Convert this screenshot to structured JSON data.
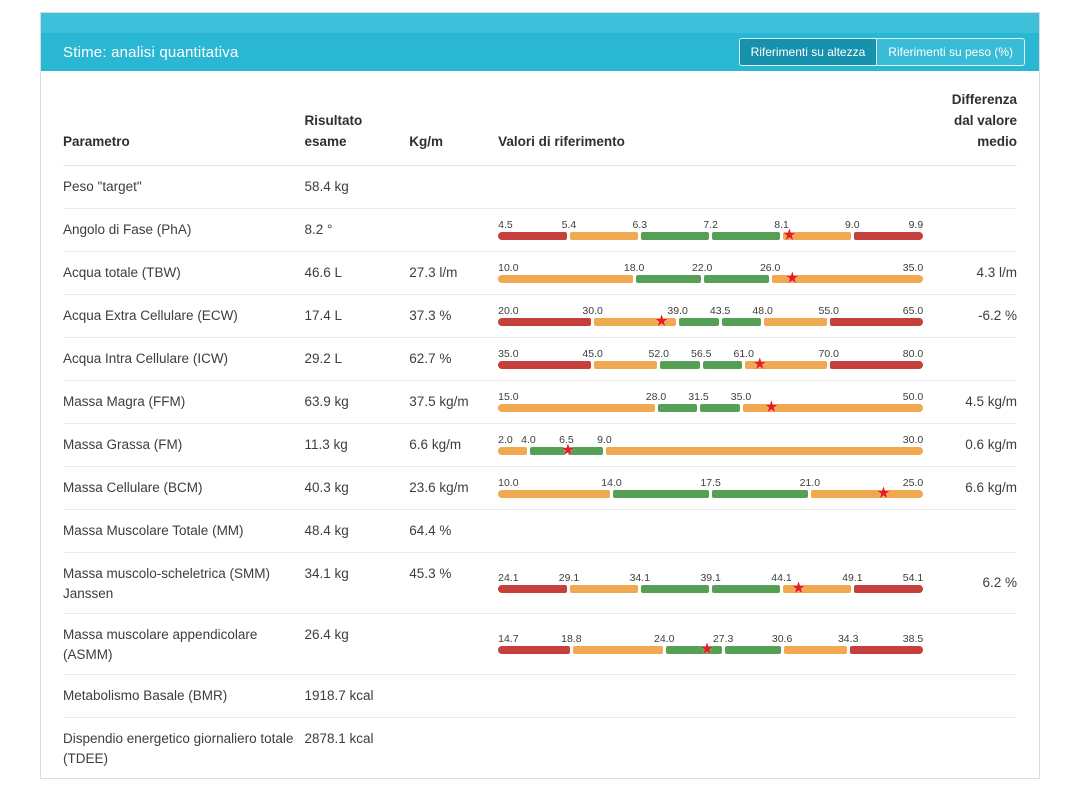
{
  "header": {
    "title": "Stime: analisi quantitativa",
    "toggle": {
      "options": [
        {
          "label": "Riferimenti su altezza",
          "active": true
        },
        {
          "label": "Riferimenti su peso (%)",
          "active": false
        }
      ]
    }
  },
  "columns": {
    "param": "Parametro",
    "result": "Risultato esame",
    "perm": "Kg/m",
    "ref": "Valori di riferimento",
    "diff": "Differenza dal valore medio"
  },
  "colors": {
    "header_bg": "#29b7d4",
    "header_top_bg": "#3fc0da",
    "active_button_bg": "#1692ad",
    "red": "#c5403a",
    "orange": "#f0a950",
    "green": "#55a055",
    "star": "#e81c25"
  },
  "icons": {
    "value_marker": "★"
  },
  "rows": [
    {
      "param": "Peso \"target\"",
      "result": "58.4 kg",
      "perm": "",
      "diff": "",
      "bar": null
    },
    {
      "param": "Angolo di Fase (PhA)",
      "result": "8.2 °",
      "perm": "",
      "diff": "",
      "bar": {
        "tick_values": [
          4.5,
          5.4,
          6.3,
          7.2,
          8.1,
          9.0,
          9.9
        ],
        "tick_labels": [
          "4.5",
          "5.4",
          "6.3",
          "7.2",
          "8.1",
          "9.0",
          "9.9"
        ],
        "segment_colors": [
          "red",
          "orange",
          "green",
          "green",
          "orange",
          "red"
        ],
        "value": 8.2
      }
    },
    {
      "param": "Acqua totale (TBW)",
      "result": "46.6 L",
      "perm": "27.3 l/m",
      "diff": "4.3 l/m",
      "bar": {
        "tick_values": [
          10.0,
          18.0,
          22.0,
          26.0,
          35.0
        ],
        "tick_labels": [
          "10.0",
          "18.0",
          "22.0",
          "26.0",
          "35.0"
        ],
        "segment_colors": [
          "orange",
          "green",
          "green",
          "orange"
        ],
        "value": 27.3
      }
    },
    {
      "param": "Acqua Extra Cellulare (ECW)",
      "result": "17.4 L",
      "perm": "37.3 %",
      "diff": "-6.2 %",
      "bar": {
        "tick_values": [
          20.0,
          30.0,
          39.0,
          43.5,
          48.0,
          55.0,
          65.0
        ],
        "tick_labels": [
          "20.0",
          "30.0",
          "39.0",
          "43.5",
          "48.0",
          "55.0",
          "65.0"
        ],
        "segment_colors": [
          "red",
          "orange",
          "green",
          "green",
          "orange",
          "red"
        ],
        "value": 37.3
      }
    },
    {
      "param": "Acqua Intra Cellulare (ICW)",
      "result": "29.2 L",
      "perm": "62.7 %",
      "diff": "",
      "bar": {
        "tick_values": [
          35.0,
          45.0,
          52.0,
          56.5,
          61.0,
          70.0,
          80.0
        ],
        "tick_labels": [
          "35.0",
          "45.0",
          "52.0",
          "56.5",
          "61.0",
          "70.0",
          "80.0"
        ],
        "segment_colors": [
          "red",
          "orange",
          "green",
          "green",
          "orange",
          "red"
        ],
        "value": 62.7
      }
    },
    {
      "param": "Massa Magra (FFM)",
      "result": "63.9 kg",
      "perm": "37.5 kg/m",
      "diff": "4.5 kg/m",
      "bar": {
        "tick_values": [
          15.0,
          28.0,
          31.5,
          35.0,
          50.0
        ],
        "tick_labels": [
          "15.0",
          "28.0",
          "31.5",
          "35.0",
          "50.0"
        ],
        "segment_colors": [
          "orange",
          "green",
          "green",
          "orange"
        ],
        "value": 37.5
      }
    },
    {
      "param": "Massa Grassa (FM)",
      "result": "11.3 kg",
      "perm": "6.6 kg/m",
      "diff": "0.6 kg/m",
      "bar": {
        "tick_values": [
          2.0,
          4.0,
          6.5,
          9.0,
          30.0
        ],
        "tick_labels": [
          "2.0",
          "4.0",
          "6.5",
          "9.0",
          "30.0"
        ],
        "segment_colors": [
          "orange",
          "green",
          "green",
          "orange"
        ],
        "value": 6.6
      }
    },
    {
      "param": "Massa Cellulare (BCM)",
      "result": "40.3 kg",
      "perm": "23.6 kg/m",
      "diff": "6.6 kg/m",
      "bar": {
        "tick_values": [
          10.0,
          14.0,
          17.5,
          21.0,
          25.0
        ],
        "tick_labels": [
          "10.0",
          "14.0",
          "17.5",
          "21.0",
          "25.0"
        ],
        "segment_colors": [
          "orange",
          "green",
          "green",
          "orange"
        ],
        "value": 23.6
      }
    },
    {
      "param": "Massa Muscolare Totale (MM)",
      "result": "48.4 kg",
      "perm": "64.4 %",
      "diff": "",
      "bar": null
    },
    {
      "param": "Massa muscolo-scheletrica (SMM) Janssen",
      "result": "34.1 kg",
      "perm": "45.3 %",
      "diff": "6.2 %",
      "bar": {
        "tick_values": [
          24.1,
          29.1,
          34.1,
          39.1,
          44.1,
          49.1,
          54.1
        ],
        "tick_labels": [
          "24.1",
          "29.1",
          "34.1",
          "39.1",
          "44.1",
          "49.1",
          "54.1"
        ],
        "segment_colors": [
          "red",
          "orange",
          "green",
          "green",
          "orange",
          "red"
        ],
        "value": 45.3
      }
    },
    {
      "param": "Massa muscolare appendicolare (ASMM)",
      "result": "26.4 kg",
      "perm": "",
      "diff": "",
      "bar": {
        "tick_values": [
          14.7,
          18.8,
          24.0,
          27.3,
          30.6,
          34.3,
          38.5
        ],
        "tick_labels": [
          "14.7",
          "18.8",
          "24.0",
          "27.3",
          "30.6",
          "34.3",
          "38.5"
        ],
        "segment_colors": [
          "red",
          "orange",
          "green",
          "green",
          "orange",
          "red"
        ],
        "value": 26.4
      }
    },
    {
      "param": "Metabolismo Basale (BMR)",
      "result": "1918.7 kcal",
      "perm": "",
      "diff": "",
      "bar": null
    },
    {
      "param": "Dispendio energetico giornaliero totale (TDEE)",
      "result": "2878.1 kcal",
      "perm": "",
      "diff": "",
      "bar": null
    }
  ]
}
